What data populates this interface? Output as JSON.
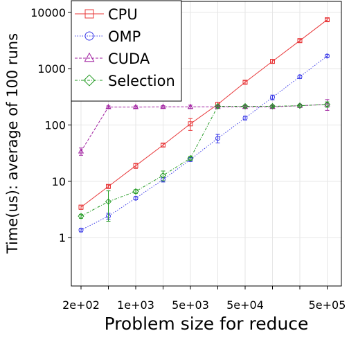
{
  "chart_data": {
    "type": "line",
    "x_label": "Problem size for reduce",
    "y_label": "Time(us): average of 100 runs",
    "categories": [
      "2e+02",
      null,
      "1e+03",
      null,
      "5e+03",
      null,
      "5e+04",
      null,
      null,
      "5e+05"
    ],
    "ylim": [
      0.138,
      15700
    ],
    "yticks": [
      1,
      10,
      100,
      1000,
      10000
    ],
    "log_y": true,
    "grid": true,
    "legend": "upper left",
    "series": [
      {
        "name": "CPU",
        "color": "#e8383a",
        "marker": "square",
        "dash": "solid",
        "values": [
          3.47,
          8.1,
          18.9,
          44,
          105,
          233,
          575,
          1350,
          3150,
          7400
        ],
        "errors": [
          0.3,
          0.5,
          2,
          3,
          25,
          20,
          40,
          100,
          200,
          400
        ]
      },
      {
        "name": "OMP",
        "color": "#3a3ae8",
        "marker": "circle",
        "dash": "dotted",
        "values": [
          1.36,
          2.4,
          5.0,
          10.7,
          24.4,
          58,
          133,
          310,
          720,
          1680
        ],
        "errors": [
          0.1,
          0.3,
          0.3,
          1,
          2,
          10,
          10,
          30,
          50,
          100
        ]
      },
      {
        "name": "CUDA",
        "color": "#a020a0",
        "marker": "triangle",
        "dash": "dashed",
        "values": [
          34,
          208,
          208,
          210,
          210,
          210,
          210,
          210,
          220,
          232
        ],
        "errors": [
          5,
          10,
          10,
          10,
          15,
          10,
          10,
          10,
          15,
          50
        ]
      },
      {
        "name": "Selection",
        "color": "#229a22",
        "marker": "diamond",
        "dash": "dashdot",
        "values": [
          2.4,
          4.35,
          6.6,
          12.7,
          25.7,
          215,
          215,
          215,
          220,
          232
        ],
        "errors": [
          0.2,
          2.4,
          0.5,
          2.5,
          2,
          10,
          10,
          10,
          10,
          25
        ]
      }
    ]
  }
}
